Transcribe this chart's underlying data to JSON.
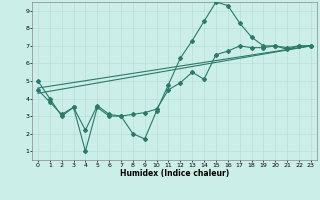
{
  "xlabel": "Humidex (Indice chaleur)",
  "background_color": "#cceee8",
  "grid_color": "#b8ddd8",
  "line_color": "#2a7a6a",
  "xlim": [
    -0.5,
    23.5
  ],
  "ylim": [
    0.5,
    9.5
  ],
  "xticks": [
    0,
    1,
    2,
    3,
    4,
    5,
    6,
    7,
    8,
    9,
    10,
    11,
    12,
    13,
    14,
    15,
    16,
    17,
    18,
    19,
    20,
    21,
    22,
    23
  ],
  "yticks": [
    1,
    2,
    3,
    4,
    5,
    6,
    7,
    8,
    9
  ],
  "line1_x": [
    0,
    1,
    2,
    3,
    4,
    5,
    6,
    7,
    8,
    9,
    10,
    11,
    12,
    13,
    14,
    15,
    16,
    17,
    18,
    19,
    20,
    21,
    22,
    23
  ],
  "line1_y": [
    5.0,
    4.0,
    3.0,
    3.5,
    1.0,
    3.5,
    3.0,
    3.0,
    2.0,
    1.7,
    3.3,
    4.8,
    6.3,
    7.3,
    8.4,
    9.5,
    9.3,
    8.3,
    7.5,
    7.0,
    7.0,
    6.8,
    7.0,
    7.0
  ],
  "line2_x": [
    0,
    1,
    2,
    3,
    4,
    5,
    6,
    7,
    8,
    9,
    10,
    11,
    12,
    13,
    14,
    15,
    16,
    17,
    18,
    19,
    20,
    21,
    22,
    23
  ],
  "line2_y": [
    4.5,
    3.8,
    3.1,
    3.5,
    2.2,
    3.6,
    3.1,
    3.0,
    3.1,
    3.2,
    3.4,
    4.5,
    4.9,
    5.5,
    5.1,
    6.5,
    6.7,
    7.0,
    6.9,
    6.9,
    7.0,
    6.9,
    7.0,
    7.0
  ],
  "line3_x": [
    0,
    23
  ],
  "line3_y": [
    4.3,
    7.0
  ],
  "line4_x": [
    0,
    23
  ],
  "line4_y": [
    4.6,
    7.0
  ]
}
